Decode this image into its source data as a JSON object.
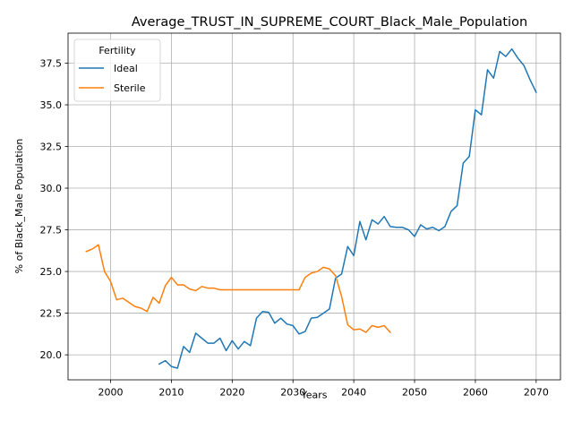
{
  "chart_data": {
    "type": "line",
    "title": "Average_TRUST_IN_SUPREME_COURT_Black_Male_Population",
    "xlabel": "Years",
    "ylabel": "% of Black_Male Population",
    "xlim": [
      1993,
      2074
    ],
    "ylim": [
      18.5,
      39.3
    ],
    "x_ticks": [
      2000,
      2010,
      2020,
      2030,
      2040,
      2050,
      2060,
      2070
    ],
    "y_ticks": [
      20.0,
      22.5,
      25.0,
      27.5,
      30.0,
      32.5,
      35.0,
      37.5
    ],
    "x_tick_labels": [
      "2000",
      "2010",
      "2020",
      "2030",
      "2040",
      "2050",
      "2060",
      "2070"
    ],
    "y_tick_labels": [
      "20.0",
      "22.5",
      "25.0",
      "27.5",
      "30.0",
      "32.5",
      "35.0",
      "37.5"
    ],
    "grid": true,
    "legend": {
      "title": "Fertility",
      "placement": "upper-left"
    },
    "series": [
      {
        "name": "Ideal",
        "color": "#1f77b4",
        "points": [
          [
            2008,
            19.45
          ],
          [
            2009,
            19.65
          ],
          [
            2010,
            19.3
          ],
          [
            2011,
            19.2
          ],
          [
            2012,
            20.5
          ],
          [
            2013,
            20.15
          ],
          [
            2014,
            21.3
          ],
          [
            2015,
            21.0
          ],
          [
            2016,
            20.7
          ],
          [
            2017,
            20.7
          ],
          [
            2018,
            21.0
          ],
          [
            2019,
            20.25
          ],
          [
            2020,
            20.85
          ],
          [
            2021,
            20.35
          ],
          [
            2022,
            20.8
          ],
          [
            2023,
            20.55
          ],
          [
            2024,
            22.2
          ],
          [
            2025,
            22.6
          ],
          [
            2026,
            22.55
          ],
          [
            2027,
            21.9
          ],
          [
            2028,
            22.2
          ],
          [
            2029,
            21.85
          ],
          [
            2030,
            21.75
          ],
          [
            2031,
            21.25
          ],
          [
            2032,
            21.4
          ],
          [
            2033,
            22.2
          ],
          [
            2034,
            22.25
          ],
          [
            2035,
            22.5
          ],
          [
            2036,
            22.75
          ],
          [
            2037,
            24.6
          ],
          [
            2038,
            24.85
          ],
          [
            2039,
            26.5
          ],
          [
            2040,
            25.95
          ],
          [
            2041,
            28.0
          ],
          [
            2042,
            26.9
          ],
          [
            2043,
            28.1
          ],
          [
            2044,
            27.85
          ],
          [
            2045,
            28.3
          ],
          [
            2046,
            27.7
          ],
          [
            2047,
            27.65
          ],
          [
            2048,
            27.65
          ],
          [
            2049,
            27.5
          ],
          [
            2050,
            27.1
          ],
          [
            2051,
            27.8
          ],
          [
            2052,
            27.55
          ],
          [
            2053,
            27.65
          ],
          [
            2054,
            27.45
          ],
          [
            2055,
            27.7
          ],
          [
            2056,
            28.6
          ],
          [
            2057,
            28.95
          ],
          [
            2058,
            31.5
          ],
          [
            2059,
            31.9
          ],
          [
            2060,
            34.7
          ],
          [
            2061,
            34.4
          ],
          [
            2062,
            37.1
          ],
          [
            2063,
            36.6
          ],
          [
            2064,
            38.2
          ],
          [
            2065,
            37.9
          ],
          [
            2066,
            38.35
          ],
          [
            2067,
            37.8
          ],
          [
            2068,
            37.35
          ],
          [
            2069,
            36.5
          ],
          [
            2070,
            35.75
          ]
        ]
      },
      {
        "name": "Sterile",
        "color": "#ff7f0e",
        "points": [
          [
            1996,
            26.2
          ],
          [
            1997,
            26.35
          ],
          [
            1998,
            26.6
          ],
          [
            1999,
            25.0
          ],
          [
            2000,
            24.4
          ],
          [
            2001,
            23.3
          ],
          [
            2002,
            23.4
          ],
          [
            2003,
            23.15
          ],
          [
            2004,
            22.9
          ],
          [
            2005,
            22.8
          ],
          [
            2006,
            22.6
          ],
          [
            2007,
            23.45
          ],
          [
            2008,
            23.1
          ],
          [
            2009,
            24.15
          ],
          [
            2010,
            24.65
          ],
          [
            2011,
            24.2
          ],
          [
            2012,
            24.2
          ],
          [
            2013,
            23.95
          ],
          [
            2014,
            23.85
          ],
          [
            2015,
            24.1
          ],
          [
            2016,
            24.0
          ],
          [
            2017,
            24.0
          ],
          [
            2018,
            23.9
          ],
          [
            2019,
            23.9
          ],
          [
            2020,
            23.9
          ],
          [
            2021,
            23.9
          ],
          [
            2022,
            23.9
          ],
          [
            2023,
            23.9
          ],
          [
            2024,
            23.9
          ],
          [
            2025,
            23.9
          ],
          [
            2026,
            23.9
          ],
          [
            2027,
            23.9
          ],
          [
            2028,
            23.9
          ],
          [
            2029,
            23.9
          ],
          [
            2030,
            23.9
          ],
          [
            2031,
            23.9
          ],
          [
            2032,
            24.65
          ],
          [
            2033,
            24.9
          ],
          [
            2034,
            25.0
          ],
          [
            2035,
            25.25
          ],
          [
            2036,
            25.15
          ],
          [
            2037,
            24.75
          ],
          [
            2038,
            23.5
          ],
          [
            2039,
            21.8
          ],
          [
            2040,
            21.5
          ],
          [
            2041,
            21.55
          ],
          [
            2042,
            21.35
          ],
          [
            2043,
            21.75
          ],
          [
            2044,
            21.65
          ],
          [
            2045,
            21.75
          ],
          [
            2046,
            21.35
          ]
        ]
      }
    ]
  }
}
